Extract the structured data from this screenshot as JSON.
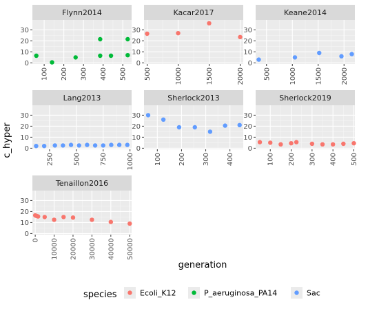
{
  "chart_data": {
    "type": "scatter",
    "xlabel": "generation",
    "ylabel": "c_hyper",
    "y_ticks": [
      0,
      10,
      20,
      30
    ],
    "ylim": [
      -1,
      39
    ],
    "grid": true,
    "legend": {
      "title": "species",
      "position": "bottom",
      "entries": [
        {
          "name": "Ecoli_K12",
          "color": "#F8766D"
        },
        {
          "name": "P_aeruginosa_PA14",
          "color": "#00BA38"
        },
        {
          "name": "Sac",
          "color": "#619CFF"
        }
      ]
    },
    "panels": [
      {
        "title": "Flynn2014",
        "xlim": [
          40,
          545
        ],
        "x_ticks": [
          100,
          200,
          300,
          400,
          500
        ],
        "x_tick_labels": [
          "100",
          "200",
          "300",
          "400",
          "500"
        ],
        "points": [
          {
            "x": 60,
            "y": 6.5,
            "species": "P_aeruginosa_PA14"
          },
          {
            "x": 140,
            "y": 0.5,
            "species": "P_aeruginosa_PA14"
          },
          {
            "x": 260,
            "y": 5,
            "species": "P_aeruginosa_PA14"
          },
          {
            "x": 385,
            "y": 21.5,
            "species": "P_aeruginosa_PA14"
          },
          {
            "x": 385,
            "y": 6.5,
            "species": "P_aeruginosa_PA14"
          },
          {
            "x": 440,
            "y": 6.5,
            "species": "P_aeruginosa_PA14"
          },
          {
            "x": 525,
            "y": 21.5,
            "species": "P_aeruginosa_PA14"
          },
          {
            "x": 525,
            "y": 7,
            "species": "P_aeruginosa_PA14"
          }
        ]
      },
      {
        "title": "Kacar2017",
        "xlim": [
          450,
          2050
        ],
        "x_ticks": [
          500,
          1000,
          1500,
          2000
        ],
        "x_tick_labels": [
          "500",
          "1000",
          "1500",
          "2000"
        ],
        "points": [
          {
            "x": 500,
            "y": 26.5,
            "species": "Ecoli_K12"
          },
          {
            "x": 1000,
            "y": 27,
            "species": "Ecoli_K12"
          },
          {
            "x": 1500,
            "y": 36,
            "species": "Ecoli_K12"
          },
          {
            "x": 2000,
            "y": 23.5,
            "species": "Ecoli_K12"
          }
        ]
      },
      {
        "title": "Keane2014",
        "xlim": [
          290,
          2210
        ],
        "x_ticks": [
          500,
          1000,
          1500,
          2000
        ],
        "x_tick_labels": [
          "500",
          "1000",
          "1500",
          "2000"
        ],
        "points": [
          {
            "x": 350,
            "y": 3,
            "species": "Sac"
          },
          {
            "x": 1050,
            "y": 5,
            "species": "Sac"
          },
          {
            "x": 1520,
            "y": 9,
            "species": "Sac"
          },
          {
            "x": 1950,
            "y": 6,
            "species": "Sac"
          },
          {
            "x": 2150,
            "y": 8,
            "species": "Sac"
          }
        ]
      },
      {
        "title": "Lang2013",
        "xlim": [
          90,
          1015
        ],
        "x_ticks": [
          250,
          500,
          750,
          1000
        ],
        "x_tick_labels": [
          "250",
          "500",
          "750",
          "1000"
        ],
        "points": [
          {
            "x": 125,
            "y": 2,
            "species": "Sac"
          },
          {
            "x": 200,
            "y": 2,
            "species": "Sac"
          },
          {
            "x": 300,
            "y": 2.5,
            "species": "Sac"
          },
          {
            "x": 375,
            "y": 2.5,
            "species": "Sac"
          },
          {
            "x": 450,
            "y": 3,
            "species": "Sac"
          },
          {
            "x": 525,
            "y": 2.5,
            "species": "Sac"
          },
          {
            "x": 600,
            "y": 3,
            "species": "Sac"
          },
          {
            "x": 675,
            "y": 2.5,
            "species": "Sac"
          },
          {
            "x": 750,
            "y": 2.5,
            "species": "Sac"
          },
          {
            "x": 825,
            "y": 3,
            "species": "Sac"
          },
          {
            "x": 900,
            "y": 3,
            "species": "Sac"
          },
          {
            "x": 975,
            "y": 3,
            "species": "Sac"
          }
        ]
      },
      {
        "title": "Sherlock2013",
        "xlim": [
          45,
          455
        ],
        "x_ticks": [
          100,
          200,
          300,
          400
        ],
        "x_tick_labels": [
          "100",
          "200",
          "300",
          "400"
        ],
        "points": [
          {
            "x": 62,
            "y": 30,
            "species": "Sac"
          },
          {
            "x": 125,
            "y": 26,
            "species": "Sac"
          },
          {
            "x": 190,
            "y": 19,
            "species": "Sac"
          },
          {
            "x": 255,
            "y": 19,
            "species": "Sac"
          },
          {
            "x": 318,
            "y": 15,
            "species": "Sac"
          },
          {
            "x": 380,
            "y": 20.5,
            "species": "Sac"
          },
          {
            "x": 440,
            "y": 21,
            "species": "Sac"
          }
        ]
      },
      {
        "title": "Sherlock2019",
        "xlim": [
          30,
          505
        ],
        "x_ticks": [
          100,
          200,
          300,
          400,
          500
        ],
        "x_tick_labels": [
          "100",
          "200",
          "300",
          "400",
          "500"
        ],
        "points": [
          {
            "x": 50,
            "y": 5.5,
            "species": "Ecoli_K12"
          },
          {
            "x": 100,
            "y": 5,
            "species": "Ecoli_K12"
          },
          {
            "x": 150,
            "y": 3.5,
            "species": "Ecoli_K12"
          },
          {
            "x": 200,
            "y": 4.5,
            "species": "Ecoli_K12"
          },
          {
            "x": 225,
            "y": 5.5,
            "species": "Ecoli_K12"
          },
          {
            "x": 300,
            "y": 4,
            "species": "Ecoli_K12"
          },
          {
            "x": 350,
            "y": 3.5,
            "species": "Ecoli_K12"
          },
          {
            "x": 400,
            "y": 3.5,
            "species": "Ecoli_K12"
          },
          {
            "x": 450,
            "y": 4,
            "species": "Ecoli_K12"
          },
          {
            "x": 500,
            "y": 4.5,
            "species": "Ecoli_K12"
          }
        ]
      },
      {
        "title": "Tenaillon2016",
        "xlim": [
          -1500,
          51000
        ],
        "x_ticks": [
          0,
          10000,
          20000,
          30000,
          40000,
          50000
        ],
        "x_tick_labels": [
          "0",
          "10000",
          "20000",
          "30000",
          "40000",
          "50000"
        ],
        "points": [
          {
            "x": 0,
            "y": 16.5,
            "species": "Ecoli_K12"
          },
          {
            "x": 700,
            "y": 16,
            "species": "Ecoli_K12"
          },
          {
            "x": 1500,
            "y": 15.5,
            "species": "Ecoli_K12"
          },
          {
            "x": 5000,
            "y": 15,
            "species": "Ecoli_K12"
          },
          {
            "x": 10000,
            "y": 12.5,
            "species": "Ecoli_K12"
          },
          {
            "x": 15000,
            "y": 15,
            "species": "Ecoli_K12"
          },
          {
            "x": 20000,
            "y": 14.5,
            "species": "Ecoli_K12"
          },
          {
            "x": 30000,
            "y": 12.5,
            "species": "Ecoli_K12"
          },
          {
            "x": 40000,
            "y": 10.5,
            "species": "Ecoli_K12"
          },
          {
            "x": 50000,
            "y": 9,
            "species": "Ecoli_K12"
          }
        ]
      }
    ]
  }
}
